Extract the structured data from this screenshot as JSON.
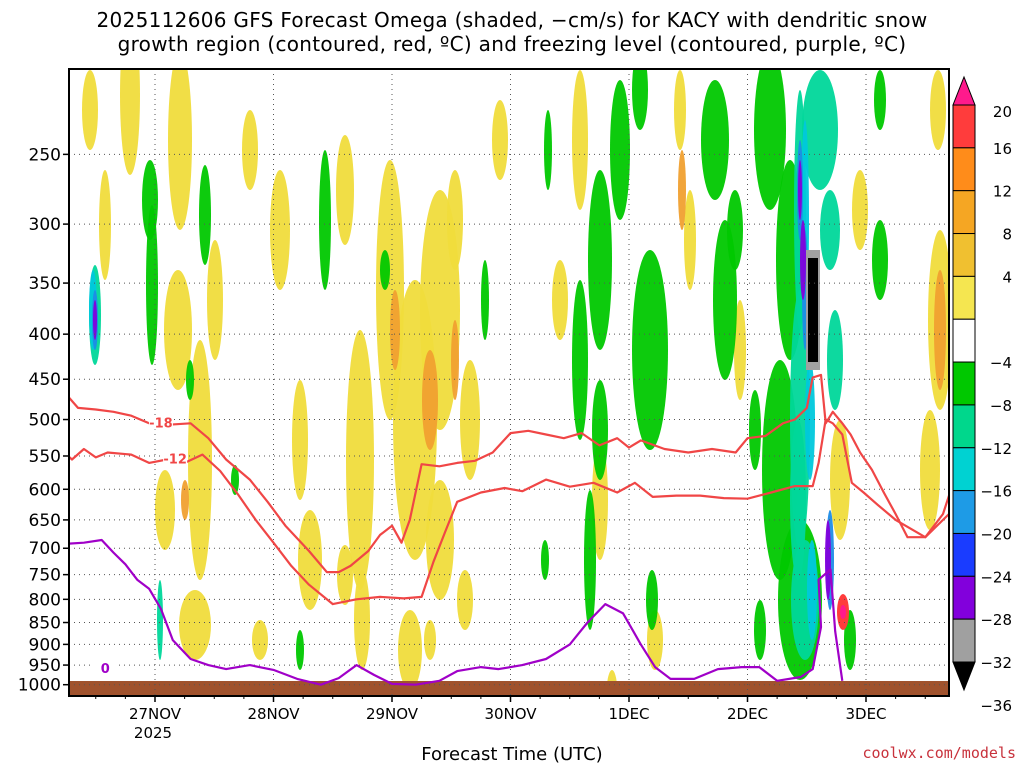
{
  "title_line1": "2025112606 GFS Forecast Omega (shaded, −cm/s) for KACY with dendritic snow",
  "title_line2": "growth region (contoured, red, ºC) and freezing level (contoured, purple, ºC)",
  "watermark": "coolwx.com/models",
  "chart_data": {
    "type": "heatmap",
    "xlabel": "Forecast Time (UTC)",
    "x_ticks": [
      {
        "label": "27NOV",
        "sub": "2025",
        "t": 1
      },
      {
        "label": "28NOV",
        "sub": "",
        "t": 2
      },
      {
        "label": "29NOV",
        "sub": "",
        "t": 3
      },
      {
        "label": "30NOV",
        "sub": "",
        "t": 4
      },
      {
        "label": "1DEC",
        "sub": "",
        "t": 5
      },
      {
        "label": "2DEC",
        "sub": "",
        "t": 6
      },
      {
        "label": "3DEC",
        "sub": "",
        "t": 7
      }
    ],
    "x_range": [
      0.08,
      7.75
    ],
    "y_ticks": [
      250,
      300,
      350,
      400,
      450,
      500,
      550,
      600,
      650,
      700,
      750,
      800,
      850,
      900,
      950,
      1000
    ],
    "y_range_hpa": [
      200,
      1030
    ],
    "grid": true,
    "colorbar": {
      "labels": [
        "20",
        "16",
        "12",
        "8",
        "4",
        "−4",
        "−8",
        "−12",
        "−16",
        "−20",
        "−24",
        "−28",
        "−32",
        "−36"
      ],
      "colors": [
        "#ff1a8c",
        "#ff3c3c",
        "#ff8c1a",
        "#f5a623",
        "#f0c030",
        "#f5e650",
        "#ffffff",
        "#00c800",
        "#00d78c",
        "#00d2d2",
        "#1e9be6",
        "#1a3cff",
        "#8200dc",
        "#a0a0a0",
        "#000000"
      ]
    },
    "contours": [
      {
        "name": "-18",
        "color": "#f04646",
        "label_t": 1.05,
        "label_p": 505,
        "points": [
          [
            0.08,
            472
          ],
          [
            0.15,
            478
          ],
          [
            0.25,
            468
          ],
          [
            0.35,
            485
          ],
          [
            0.5,
            487
          ],
          [
            0.65,
            490
          ],
          [
            0.8,
            495
          ],
          [
            0.95,
            505
          ],
          [
            1.1,
            507
          ],
          [
            1.3,
            505
          ],
          [
            1.45,
            525
          ],
          [
            1.6,
            555
          ],
          [
            1.8,
            585
          ],
          [
            1.95,
            620
          ],
          [
            2.1,
            660
          ],
          [
            2.3,
            705
          ],
          [
            2.45,
            745
          ],
          [
            2.55,
            745
          ],
          [
            2.65,
            733
          ],
          [
            2.8,
            705
          ],
          [
            2.9,
            676
          ],
          [
            3.0,
            660
          ],
          [
            3.08,
            690
          ],
          [
            3.15,
            650
          ],
          [
            3.25,
            562
          ],
          [
            3.4,
            565
          ],
          [
            3.55,
            560
          ],
          [
            3.7,
            557
          ],
          [
            3.85,
            545
          ],
          [
            4.0,
            518
          ],
          [
            4.15,
            515
          ],
          [
            4.3,
            520
          ],
          [
            4.45,
            525
          ],
          [
            4.6,
            518
          ],
          [
            4.75,
            535
          ],
          [
            4.9,
            525
          ],
          [
            5.0,
            538
          ],
          [
            5.1,
            528
          ],
          [
            5.3,
            540
          ],
          [
            5.5,
            545
          ],
          [
            5.7,
            540
          ],
          [
            5.9,
            545
          ],
          [
            6.0,
            525
          ],
          [
            6.15,
            522
          ],
          [
            6.3,
            505
          ],
          [
            6.4,
            500
          ],
          [
            6.5,
            485
          ],
          [
            6.55,
            448
          ],
          [
            6.62,
            445
          ],
          [
            6.66,
            505
          ],
          [
            6.72,
            490
          ],
          [
            6.8,
            505
          ],
          [
            6.87,
            520
          ],
          [
            6.95,
            545
          ],
          [
            7.05,
            570
          ],
          [
            7.15,
            605
          ],
          [
            7.25,
            640
          ],
          [
            7.35,
            680
          ],
          [
            7.5,
            680
          ],
          [
            7.65,
            640
          ],
          [
            7.7,
            610
          ]
        ]
      },
      {
        "name": "-12",
        "color": "#f04646",
        "label_t": 1.17,
        "label_p": 555,
        "points": [
          [
            0.08,
            540
          ],
          [
            0.2,
            540
          ],
          [
            0.3,
            555
          ],
          [
            0.4,
            540
          ],
          [
            0.5,
            552
          ],
          [
            0.6,
            545
          ],
          [
            0.8,
            548
          ],
          [
            0.95,
            560
          ],
          [
            1.1,
            555
          ],
          [
            1.25,
            560
          ],
          [
            1.4,
            548
          ],
          [
            1.55,
            572
          ],
          [
            1.7,
            608
          ],
          [
            1.85,
            650
          ],
          [
            2.0,
            690
          ],
          [
            2.15,
            733
          ],
          [
            2.3,
            770
          ],
          [
            2.5,
            810
          ],
          [
            2.7,
            800
          ],
          [
            2.9,
            795
          ],
          [
            3.1,
            798
          ],
          [
            3.25,
            795
          ],
          [
            3.35,
            725
          ],
          [
            3.45,
            670
          ],
          [
            3.55,
            620
          ],
          [
            3.75,
            605
          ],
          [
            3.95,
            598
          ],
          [
            4.1,
            603
          ],
          [
            4.3,
            585
          ],
          [
            4.5,
            596
          ],
          [
            4.7,
            590
          ],
          [
            4.9,
            605
          ],
          [
            5.05,
            590
          ],
          [
            5.2,
            612
          ],
          [
            5.4,
            610
          ],
          [
            5.6,
            610
          ],
          [
            5.8,
            614
          ],
          [
            6.0,
            615
          ],
          [
            6.2,
            605
          ],
          [
            6.4,
            595
          ],
          [
            6.55,
            595
          ],
          [
            6.6,
            560
          ],
          [
            6.66,
            500
          ],
          [
            6.72,
            505
          ],
          [
            6.8,
            520
          ],
          [
            6.88,
            590
          ],
          [
            6.98,
            605
          ],
          [
            7.1,
            625
          ],
          [
            7.25,
            650
          ],
          [
            7.5,
            680
          ],
          [
            7.7,
            640
          ]
        ]
      },
      {
        "name": "0",
        "color": "#a000c8",
        "label_t": 0.58,
        "label_p": 960,
        "points": [
          [
            0.08,
            685
          ],
          [
            0.15,
            680
          ],
          [
            0.25,
            692
          ],
          [
            0.4,
            690
          ],
          [
            0.55,
            685
          ],
          [
            0.65,
            708
          ],
          [
            0.75,
            730
          ],
          [
            0.85,
            760
          ],
          [
            0.95,
            778
          ],
          [
            1.05,
            820
          ],
          [
            1.15,
            890
          ],
          [
            1.3,
            935
          ],
          [
            1.45,
            950
          ],
          [
            1.6,
            960
          ],
          [
            1.8,
            950
          ],
          [
            2.0,
            962
          ],
          [
            2.2,
            985
          ],
          [
            2.4,
            1000
          ],
          [
            2.55,
            983
          ],
          [
            2.7,
            950
          ],
          [
            2.85,
            975
          ],
          [
            3.0,
            998
          ],
          [
            3.2,
            1000
          ],
          [
            3.4,
            990
          ],
          [
            3.55,
            965
          ],
          [
            3.75,
            955
          ],
          [
            3.9,
            960
          ],
          [
            4.1,
            950
          ],
          [
            4.3,
            935
          ],
          [
            4.5,
            900
          ],
          [
            4.65,
            850
          ],
          [
            4.8,
            810
          ],
          [
            4.95,
            830
          ],
          [
            5.1,
            900
          ],
          [
            5.22,
            955
          ],
          [
            5.35,
            985
          ],
          [
            5.55,
            985
          ],
          [
            5.75,
            960
          ],
          [
            5.95,
            955
          ],
          [
            6.1,
            955
          ],
          [
            6.25,
            990
          ],
          [
            6.45,
            980
          ],
          [
            6.55,
            960
          ],
          [
            6.62,
            860
          ],
          [
            6.6,
            760
          ],
          [
            6.7,
            740
          ],
          [
            6.74,
            870
          ],
          [
            6.8,
            990
          ]
        ]
      }
    ]
  }
}
